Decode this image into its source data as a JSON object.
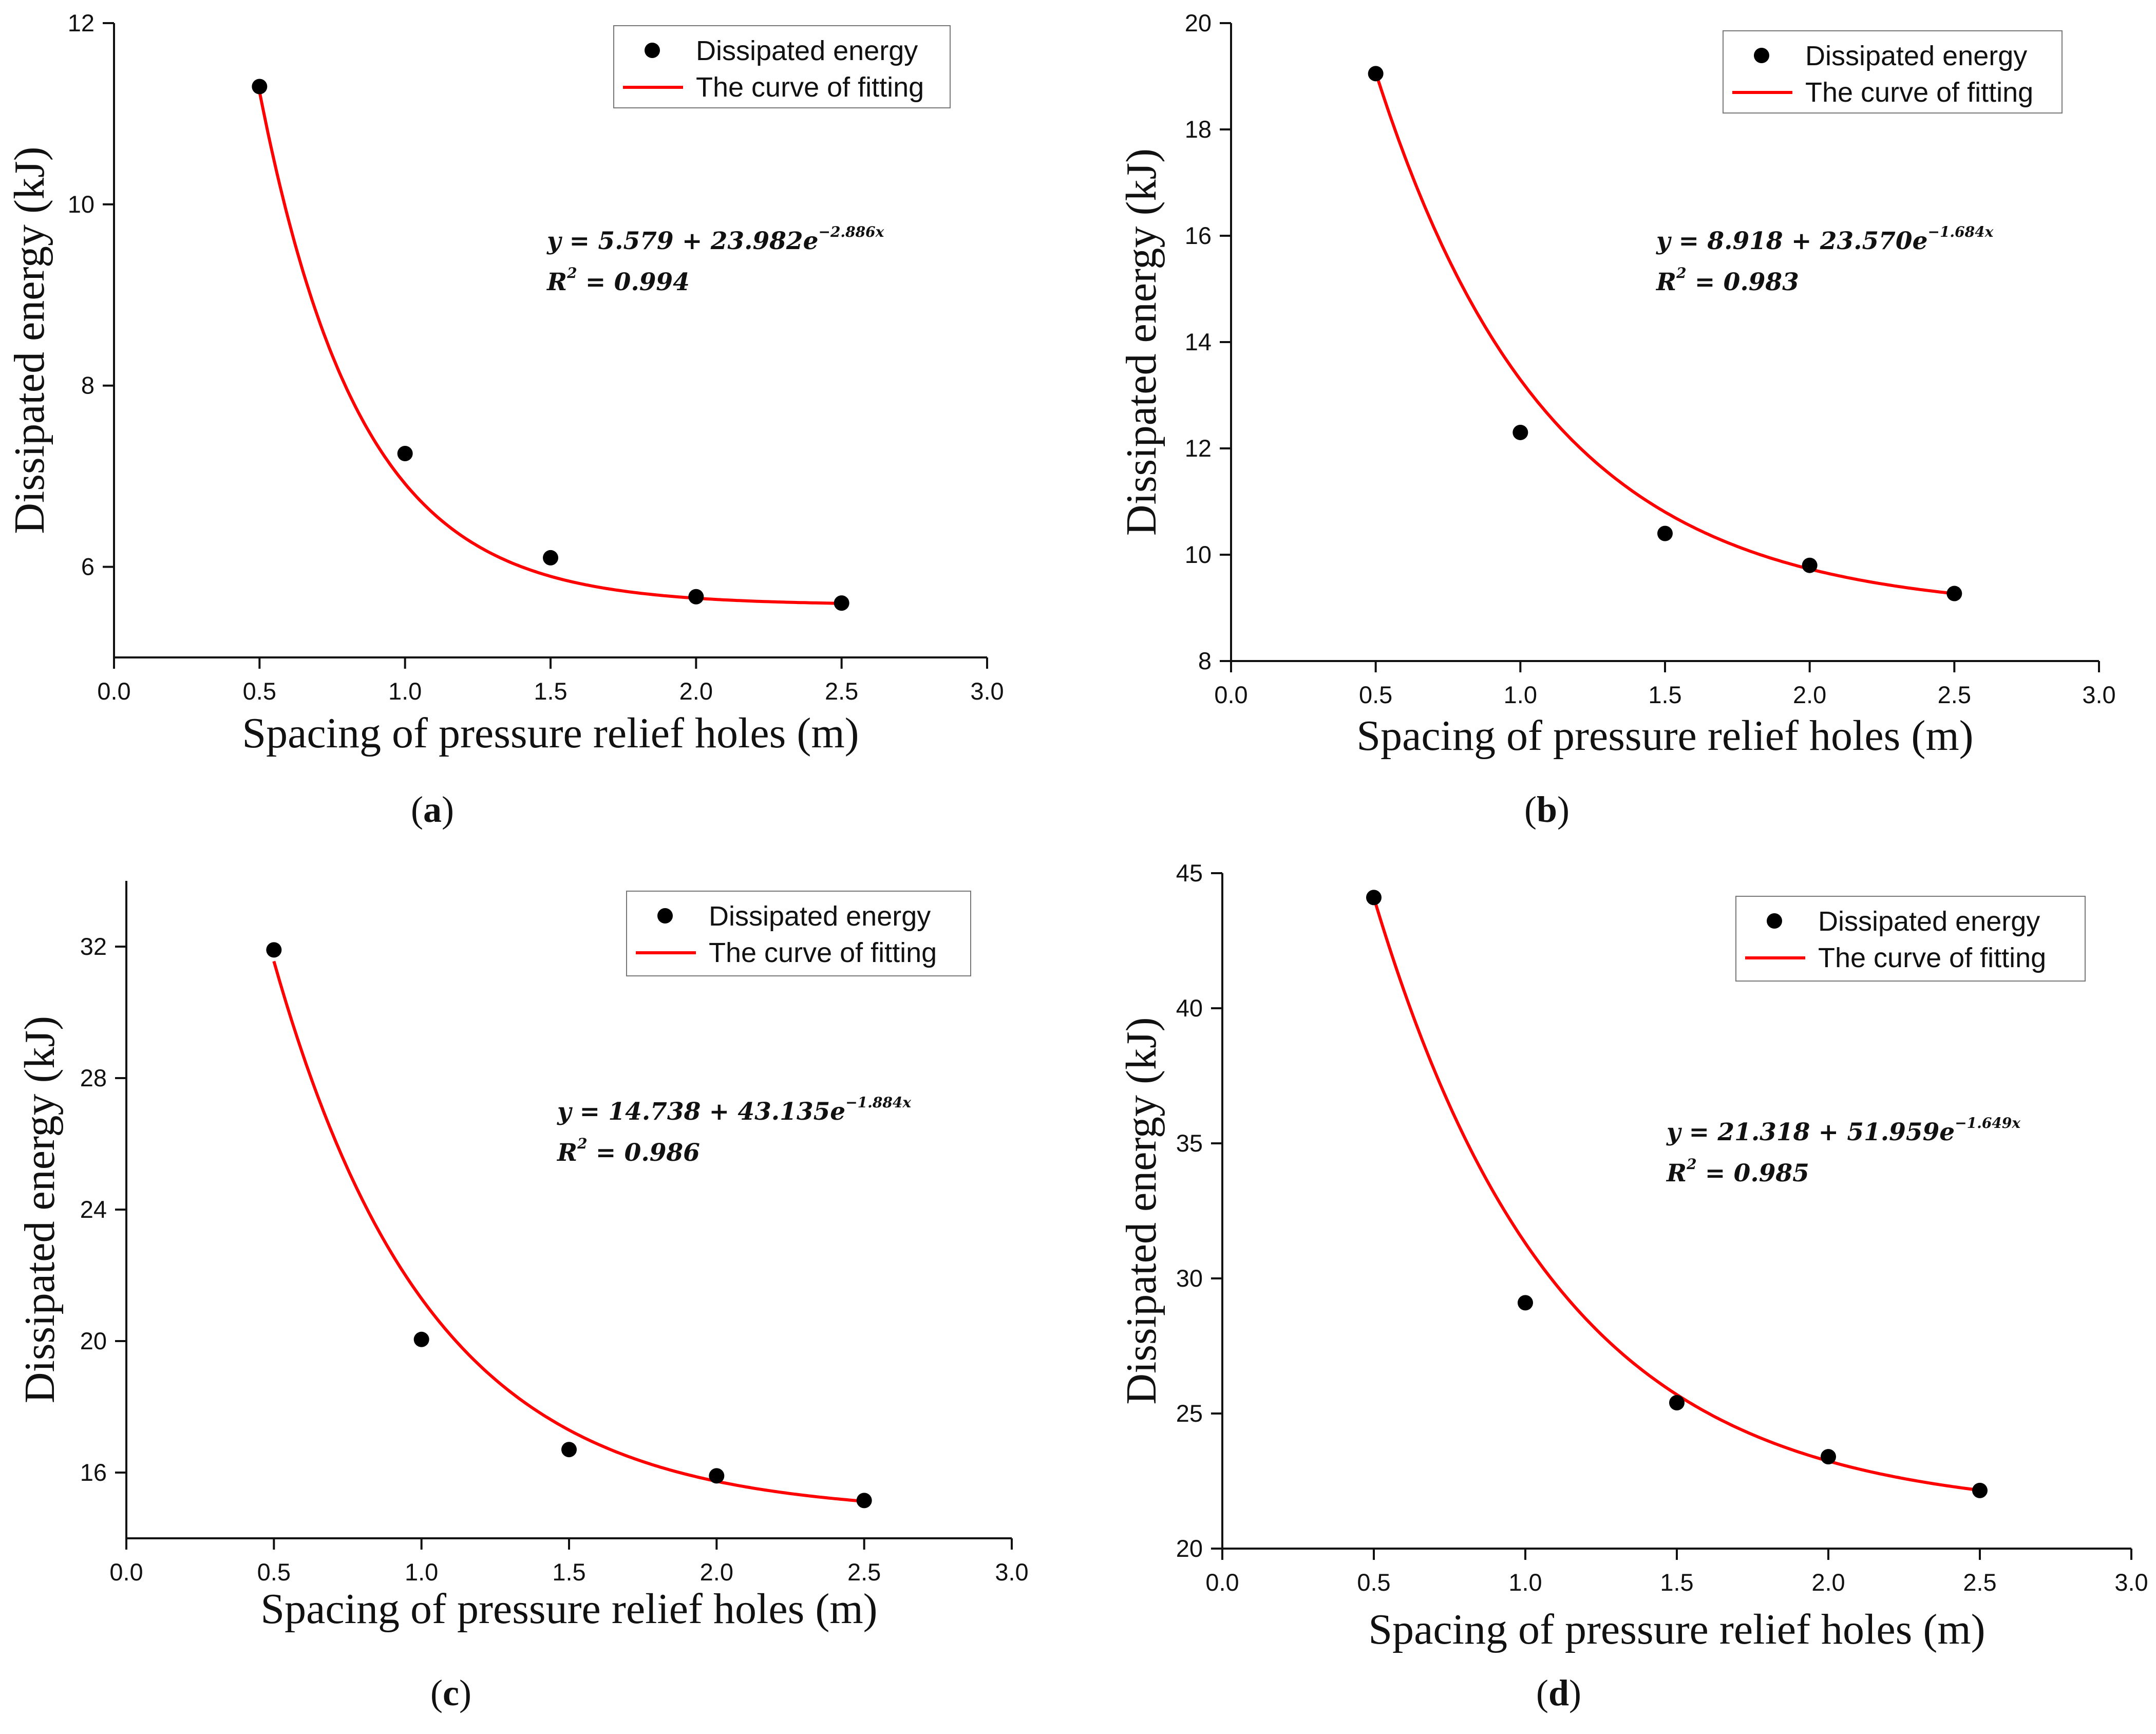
{
  "chart_data": [
    {
      "type": "scatter",
      "panel_label": "a",
      "title": "",
      "xlabel": "Spacing of pressure relief holes (m)",
      "ylabel": "Dissipated energy (kJ)",
      "xlim": [
        0.0,
        3.0
      ],
      "ylim": [
        5.0,
        12.0
      ],
      "xticks": [
        "0.0",
        "0.5",
        "1.0",
        "1.5",
        "2.0",
        "2.5",
        "3.0"
      ],
      "yticks": [
        "6",
        "8",
        "10",
        "12"
      ],
      "series": [
        {
          "name": "Dissipated energy",
          "kind": "points",
          "color": "#000000",
          "x": [
            0.5,
            1.0,
            1.5,
            2.0,
            2.5
          ],
          "y": [
            11.3,
            7.25,
            6.1,
            5.67,
            5.6
          ]
        },
        {
          "name": "The curve of fitting",
          "kind": "fit",
          "color": "#ff0000",
          "model": "exponential",
          "a": 5.579,
          "b": 23.982,
          "k": -2.886,
          "x_range": [
            0.5,
            2.5
          ]
        }
      ],
      "equation": {
        "prefix": "y = 5.579 + 23.982e",
        "exponent": "−2.886x",
        "r2_label": "R",
        "r2_exp": "2",
        "r2_value": " = 0.994"
      },
      "legend_position": "top-right"
    },
    {
      "type": "scatter",
      "panel_label": "b",
      "title": "",
      "xlabel": "Spacing of pressure relief holes (m)",
      "ylabel": "Dissipated energy (kJ)",
      "xlim": [
        0.0,
        3.0
      ],
      "ylim": [
        8.0,
        20.0
      ],
      "xticks": [
        "0.0",
        "0.5",
        "1.0",
        "1.5",
        "2.0",
        "2.5",
        "3.0"
      ],
      "yticks": [
        "8",
        "10",
        "12",
        "14",
        "16",
        "18",
        "20"
      ],
      "series": [
        {
          "name": "Dissipated energy",
          "kind": "points",
          "color": "#000000",
          "x": [
            0.5,
            1.0,
            1.5,
            2.0,
            2.5
          ],
          "y": [
            19.05,
            12.3,
            10.4,
            9.8,
            9.27
          ]
        },
        {
          "name": "The curve of fitting",
          "kind": "fit",
          "color": "#ff0000",
          "model": "exponential",
          "a": 8.918,
          "b": 23.57,
          "k": -1.684,
          "x_range": [
            0.5,
            2.5
          ]
        }
      ],
      "equation": {
        "prefix": "y = 8.918 + 23.570e",
        "exponent": "−1.684x",
        "r2_label": "R",
        "r2_exp": "2",
        "r2_value": " = 0.983"
      },
      "legend_position": "top-right"
    },
    {
      "type": "scatter",
      "panel_label": "c",
      "title": "",
      "xlabel": "Spacing of pressure relief holes (m)",
      "ylabel": "Dissipated energy (kJ)",
      "xlim": [
        0.0,
        3.0
      ],
      "ylim": [
        14.0,
        34.0
      ],
      "xticks": [
        "0.0",
        "0.5",
        "1.0",
        "1.5",
        "2.0",
        "2.5",
        "3.0"
      ],
      "yticks": [
        "16",
        "20",
        "24",
        "28",
        "32"
      ],
      "series": [
        {
          "name": "Dissipated energy",
          "kind": "points",
          "color": "#000000",
          "x": [
            0.5,
            1.0,
            1.5,
            2.0,
            2.5
          ],
          "y": [
            31.9,
            20.05,
            16.7,
            15.9,
            15.15
          ]
        },
        {
          "name": "The curve of fitting",
          "kind": "fit",
          "color": "#ff0000",
          "model": "exponential",
          "a": 14.738,
          "b": 43.135,
          "k": -1.884,
          "x_range": [
            0.5,
            2.5
          ]
        }
      ],
      "equation": {
        "prefix": "y = 14.738 + 43.135e",
        "exponent": "−1.884x",
        "r2_label": "R",
        "r2_exp": "2",
        "r2_value": " = 0.986"
      },
      "legend_position": "top-right"
    },
    {
      "type": "scatter",
      "panel_label": "d",
      "title": "",
      "xlabel": "Spacing of pressure relief holes (m)",
      "ylabel": "Dissipated energy (kJ)",
      "xlim": [
        0.0,
        3.0
      ],
      "ylim": [
        20.0,
        45.0
      ],
      "xticks": [
        "0.0",
        "0.5",
        "1.0",
        "1.5",
        "2.0",
        "2.5",
        "3.0"
      ],
      "yticks": [
        "20",
        "25",
        "30",
        "35",
        "40",
        "45"
      ],
      "series": [
        {
          "name": "Dissipated energy",
          "kind": "points",
          "color": "#000000",
          "x": [
            0.5,
            1.0,
            1.5,
            2.0,
            2.5
          ],
          "y": [
            44.1,
            29.1,
            25.4,
            23.4,
            22.15
          ]
        },
        {
          "name": "The curve of fitting",
          "kind": "fit",
          "color": "#ff0000",
          "model": "exponential",
          "a": 21.318,
          "b": 51.959,
          "k": -1.649,
          "x_range": [
            0.5,
            2.5
          ]
        }
      ],
      "equation": {
        "prefix": "y = 21.318 + 51.959e",
        "exponent": "−1.649x",
        "r2_label": "R",
        "r2_exp": "2",
        "r2_value": " = 0.985"
      },
      "legend_position": "top-right"
    }
  ]
}
